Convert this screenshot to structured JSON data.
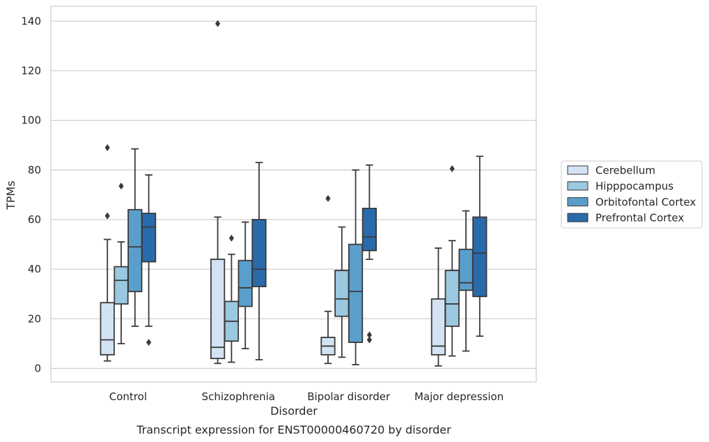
{
  "caption": "Transcript expression for ENST00000460720 by disorder",
  "chart_data": {
    "type": "box",
    "xlabel": "Disorder",
    "ylabel": "TPMs",
    "ylim": [
      -5.5,
      146
    ],
    "yticks": [
      0,
      20,
      40,
      60,
      80,
      100,
      120,
      140
    ],
    "grid": true,
    "legend_position": "right",
    "categories": [
      "Control",
      "Schizophrenia",
      "Bipolar disorder",
      "Major depression"
    ],
    "series": [
      {
        "name": "Cerebellum",
        "color": "#d3e3f2",
        "boxes": [
          {
            "whisker_low": 3,
            "q1": 5.5,
            "median": 11.5,
            "q3": 26.5,
            "whisker_high": 52,
            "outliers": [
              61.5,
              89
            ]
          },
          {
            "whisker_low": 2,
            "q1": 4,
            "median": 8.5,
            "q3": 44,
            "whisker_high": 61,
            "outliers": [
              139
            ]
          },
          {
            "whisker_low": 2,
            "q1": 5.5,
            "median": 9,
            "q3": 12.5,
            "whisker_high": 23,
            "outliers": [
              68.5
            ]
          },
          {
            "whisker_low": 1,
            "q1": 5.5,
            "median": 9,
            "q3": 28,
            "whisker_high": 48.5,
            "outliers": []
          }
        ]
      },
      {
        "name": "Hipppocampus",
        "color": "#9ac8e0",
        "boxes": [
          {
            "whisker_low": 10,
            "q1": 26,
            "median": 35.5,
            "q3": 41,
            "whisker_high": 51,
            "outliers": [
              73.5
            ]
          },
          {
            "whisker_low": 2.5,
            "q1": 11,
            "median": 19,
            "q3": 27,
            "whisker_high": 46,
            "outliers": [
              52.5
            ]
          },
          {
            "whisker_low": 4.5,
            "q1": 21,
            "median": 28,
            "q3": 39.5,
            "whisker_high": 57,
            "outliers": []
          },
          {
            "whisker_low": 5,
            "q1": 17,
            "median": 26,
            "q3": 39.5,
            "whisker_high": 51.5,
            "outliers": [
              80.5
            ]
          }
        ]
      },
      {
        "name": "Orbitofontal Cortex",
        "color": "#5a9fcc",
        "boxes": [
          {
            "whisker_low": 17,
            "q1": 31,
            "median": 49,
            "q3": 64,
            "whisker_high": 88.5,
            "outliers": []
          },
          {
            "whisker_low": 8,
            "q1": 25,
            "median": 32.5,
            "q3": 43.5,
            "whisker_high": 59,
            "outliers": []
          },
          {
            "whisker_low": 1.5,
            "q1": 10.5,
            "median": 31,
            "q3": 50,
            "whisker_high": 80,
            "outliers": []
          },
          {
            "whisker_low": 7,
            "q1": 31.5,
            "median": 34.5,
            "q3": 48,
            "whisker_high": 63.5,
            "outliers": []
          }
        ]
      },
      {
        "name": "Prefrontal Cortex",
        "color": "#2a6aaa",
        "boxes": [
          {
            "whisker_low": 17,
            "q1": 43,
            "median": 57,
            "q3": 62.5,
            "whisker_high": 78,
            "outliers": [
              10.5
            ]
          },
          {
            "whisker_low": 3.5,
            "q1": 33,
            "median": 40,
            "q3": 60,
            "whisker_high": 83,
            "outliers": []
          },
          {
            "whisker_low": 44,
            "q1": 47.5,
            "median": 53,
            "q3": 64.5,
            "whisker_high": 82,
            "outliers": [
              11.5,
              13.5
            ]
          },
          {
            "whisker_low": 13,
            "q1": 29,
            "median": 46.5,
            "q3": 61,
            "whisker_high": 85.5,
            "outliers": []
          }
        ]
      }
    ]
  }
}
